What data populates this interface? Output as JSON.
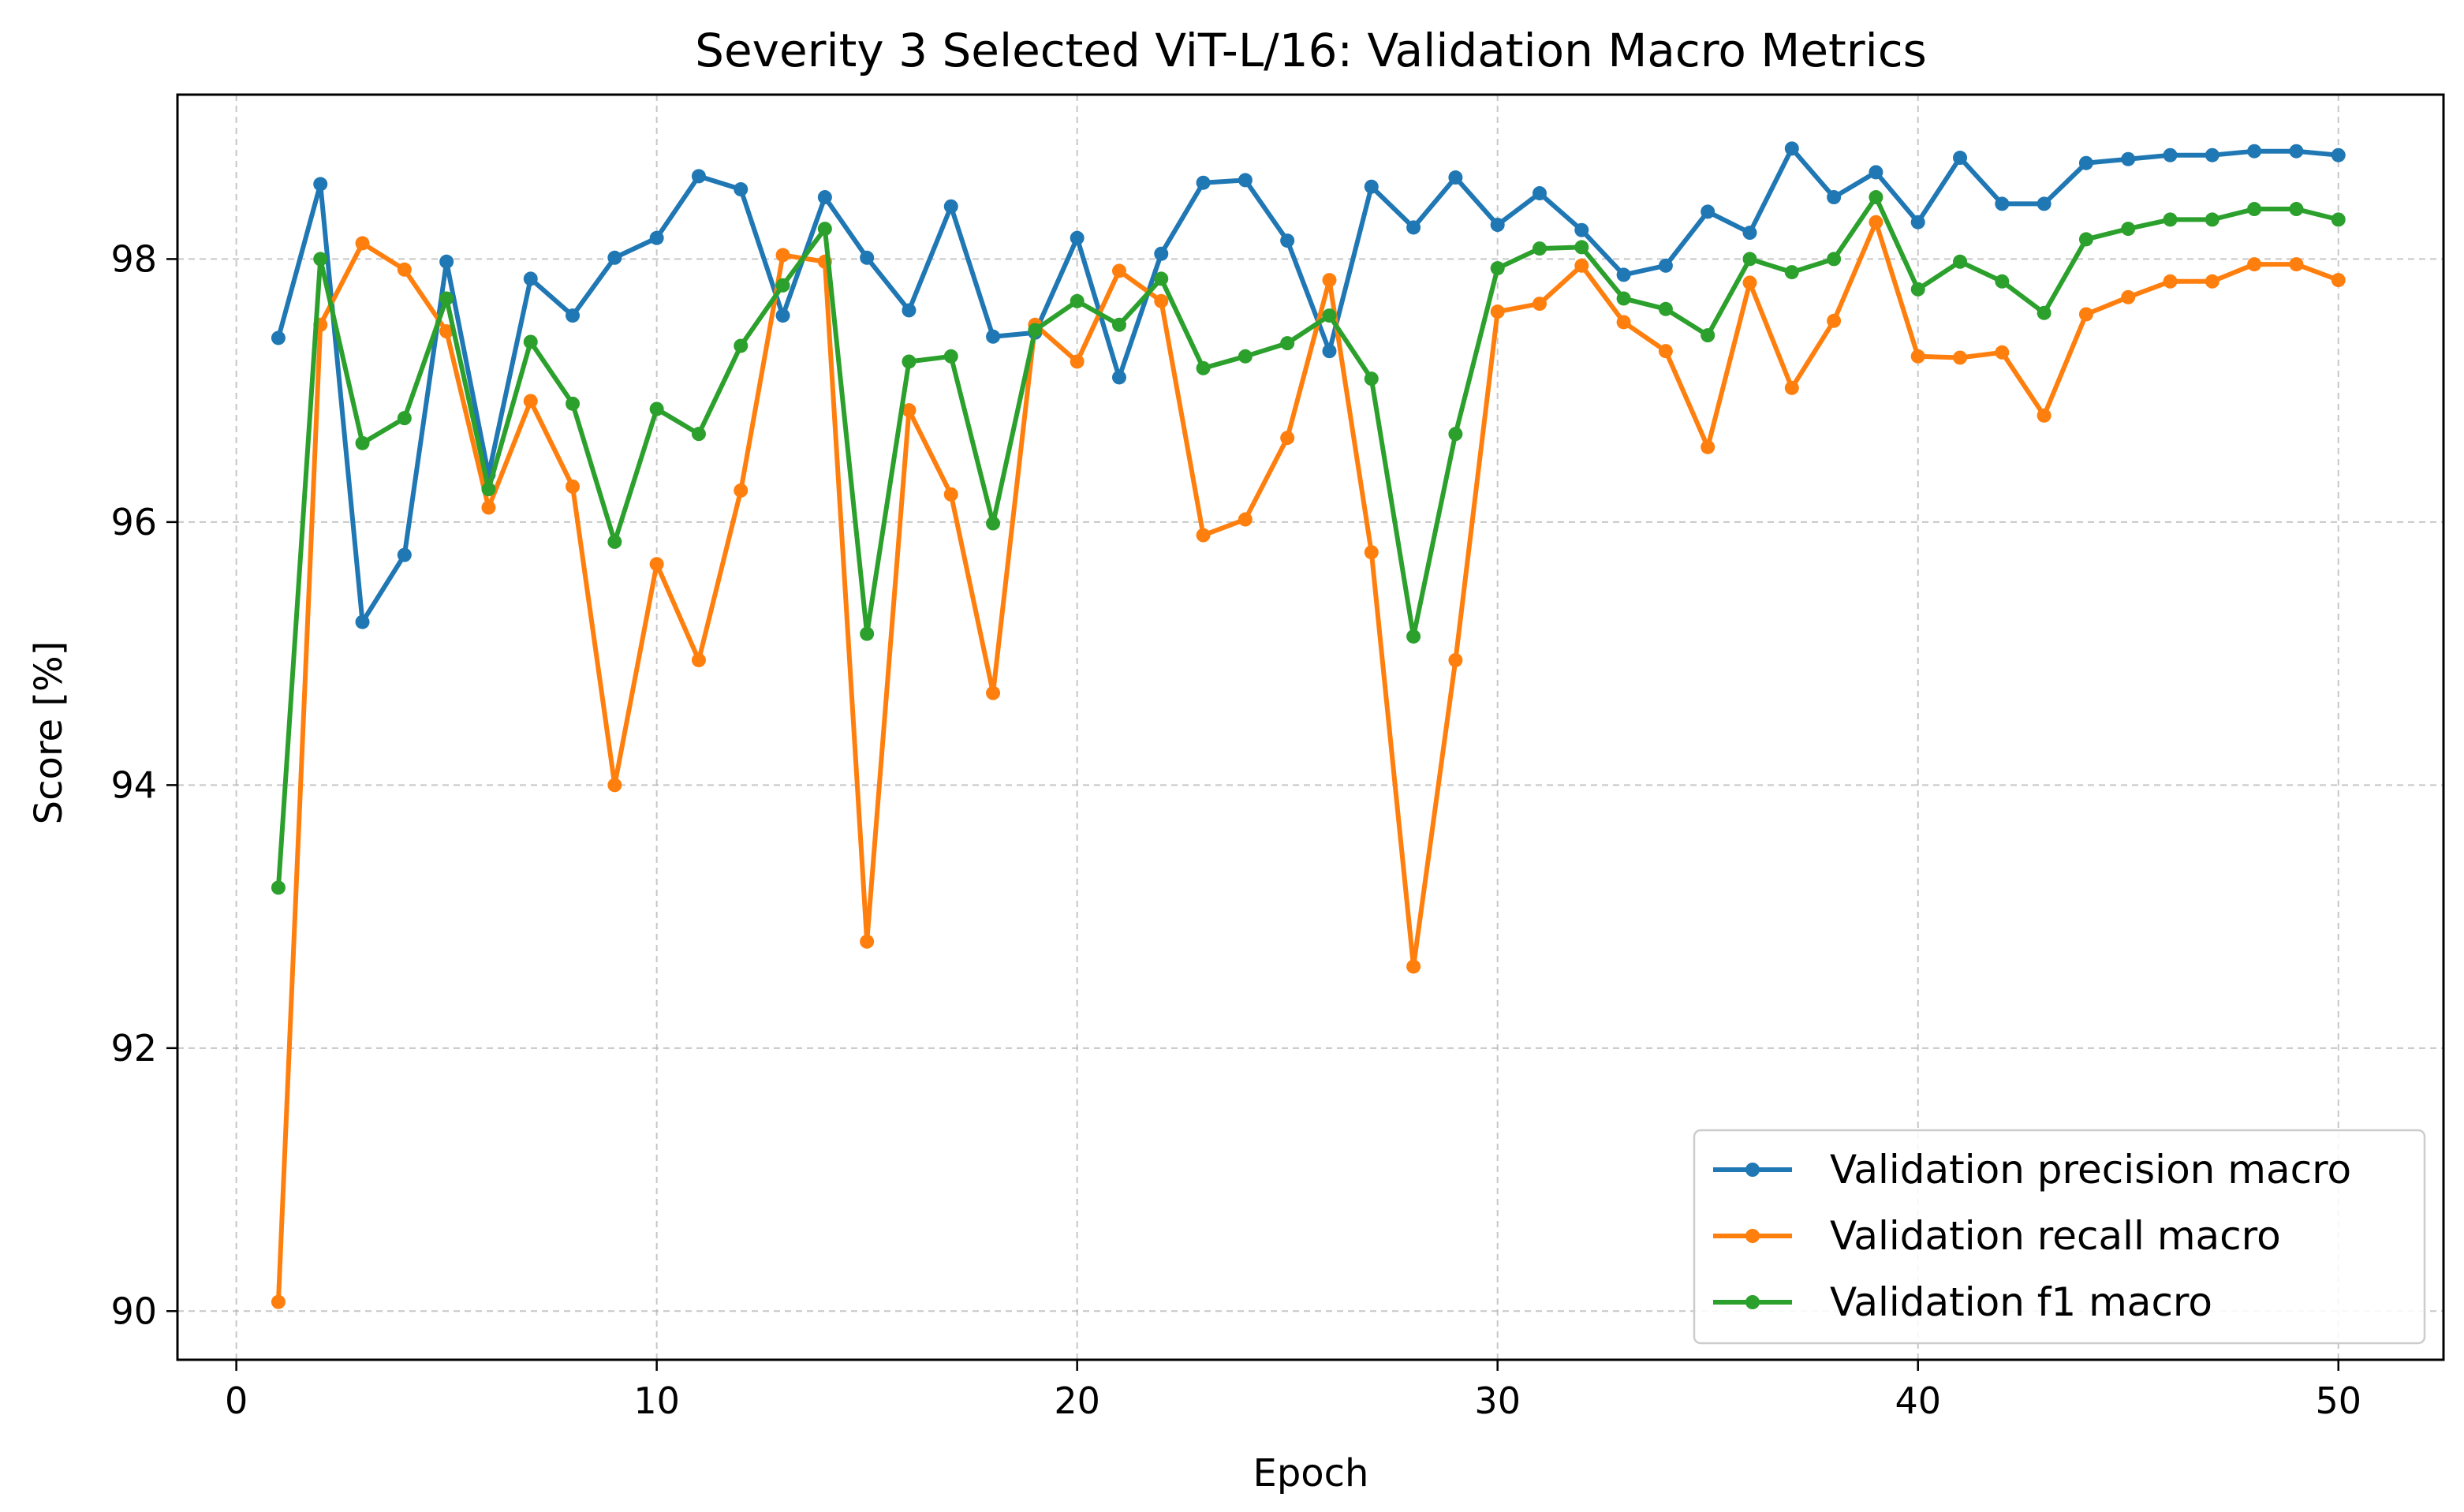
{
  "chart_data": {
    "type": "line",
    "title": "Severity 3 Selected ViT-L/16: Validation Macro Metrics",
    "xlabel": "Epoch",
    "ylabel": "Score [%]",
    "xlim": [
      -1.4,
      52.5
    ],
    "ylim": [
      89.63,
      99.25
    ],
    "x_ticks": [
      0,
      10,
      20,
      30,
      40,
      50
    ],
    "y_ticks": [
      90,
      92,
      94,
      96,
      98
    ],
    "grid": true,
    "legend_position": "lower right",
    "x": [
      1,
      2,
      3,
      4,
      5,
      6,
      7,
      8,
      9,
      10,
      11,
      12,
      13,
      14,
      15,
      16,
      17,
      18,
      19,
      20,
      21,
      22,
      23,
      24,
      25,
      26,
      27,
      28,
      29,
      30,
      31,
      32,
      33,
      34,
      35,
      36,
      37,
      38,
      39,
      40,
      41,
      42,
      43,
      44,
      45,
      46,
      47,
      48,
      49,
      50
    ],
    "series": [
      {
        "name": "Validation precision macro",
        "color": "#1f77b4",
        "values": [
          97.4,
          98.57,
          95.24,
          95.75,
          97.98,
          96.36,
          97.85,
          97.57,
          98.01,
          98.16,
          98.63,
          98.53,
          97.57,
          98.47,
          98.01,
          97.61,
          98.4,
          97.41,
          97.44,
          98.16,
          97.1,
          98.04,
          98.58,
          98.6,
          98.14,
          97.3,
          98.55,
          98.24,
          98.62,
          98.26,
          98.5,
          98.22,
          97.88,
          97.95,
          98.36,
          98.2,
          98.84,
          98.47,
          98.66,
          98.28,
          98.77,
          98.42,
          98.42,
          98.73,
          98.76,
          98.79,
          98.79,
          98.82,
          98.82,
          98.79
        ]
      },
      {
        "name": "Validation recall macro",
        "color": "#ff7f0e",
        "values": [
          90.07,
          97.5,
          98.12,
          97.92,
          97.45,
          96.11,
          96.92,
          96.27,
          94.0,
          95.68,
          94.95,
          96.24,
          98.03,
          97.98,
          92.81,
          96.85,
          96.21,
          94.7,
          97.5,
          97.22,
          97.91,
          97.68,
          95.9,
          96.02,
          96.64,
          97.84,
          95.77,
          92.62,
          94.95,
          97.6,
          97.66,
          97.95,
          97.52,
          97.3,
          96.57,
          97.82,
          97.02,
          97.53,
          98.28,
          97.26,
          97.25,
          97.29,
          96.81,
          97.58,
          97.71,
          97.83,
          97.83,
          97.96,
          97.96,
          97.84
        ]
      },
      {
        "name": "Validation f1 macro",
        "color": "#2ca02c",
        "values": [
          93.22,
          98.0,
          96.6,
          96.79,
          97.7,
          96.25,
          97.37,
          96.9,
          95.85,
          96.86,
          96.67,
          97.34,
          97.8,
          98.23,
          95.15,
          97.22,
          97.26,
          95.99,
          97.46,
          97.68,
          97.5,
          97.85,
          97.17,
          97.26,
          97.36,
          97.57,
          97.09,
          95.13,
          96.67,
          97.93,
          98.08,
          98.09,
          97.7,
          97.62,
          97.42,
          98.0,
          97.9,
          98.0,
          98.47,
          97.77,
          97.98,
          97.83,
          97.59,
          98.15,
          98.23,
          98.3,
          98.3,
          98.38,
          98.38,
          98.3
        ]
      }
    ]
  }
}
